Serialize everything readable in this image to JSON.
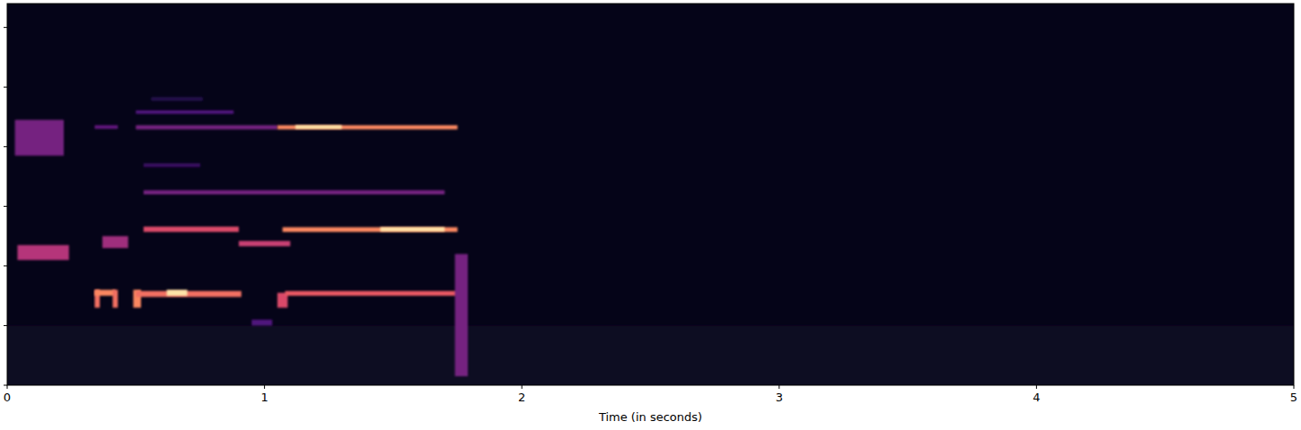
{
  "chart_data": {
    "type": "heatmap",
    "xlabel": "Time (in seconds)",
    "xlim": [
      0,
      5
    ],
    "xticks": [
      0,
      1,
      2,
      3,
      4,
      5
    ],
    "ylim": [
      0,
      6.4
    ],
    "yticks": [
      0,
      1,
      2,
      3,
      4,
      5,
      6
    ],
    "tick_labels": "x",
    "clim": [
      0,
      1
    ],
    "cells": [
      {
        "t0": 0,
        "t1": 5,
        "f0": 0,
        "f1": 1.0,
        "v": 0.06
      },
      {
        "t0": 0.03,
        "t1": 0.22,
        "f0": 3.85,
        "f1": 4.45,
        "v": 0.35
      },
      {
        "t0": 0.04,
        "t1": 0.24,
        "f0": 2.1,
        "f1": 2.35,
        "v": 0.5
      },
      {
        "t0": 0.34,
        "t1": 0.36,
        "f0": 1.3,
        "f1": 1.6,
        "v": 0.7
      },
      {
        "t0": 0.34,
        "t1": 0.42,
        "f0": 1.5,
        "f1": 1.6,
        "v": 0.75
      },
      {
        "t0": 0.41,
        "t1": 0.43,
        "f0": 1.3,
        "f1": 1.6,
        "v": 0.7
      },
      {
        "t0": 0.49,
        "t1": 0.52,
        "f0": 1.3,
        "f1": 1.6,
        "v": 0.75
      },
      {
        "t0": 0.5,
        "t1": 0.91,
        "f0": 1.48,
        "f1": 1.58,
        "v": 0.7
      },
      {
        "t0": 0.62,
        "t1": 0.7,
        "f0": 1.5,
        "f1": 1.6,
        "v": 0.95
      },
      {
        "t0": 1.05,
        "t1": 1.09,
        "f0": 1.3,
        "f1": 1.55,
        "v": 0.6
      },
      {
        "t0": 1.08,
        "t1": 1.75,
        "f0": 1.5,
        "f1": 1.58,
        "v": 0.65
      },
      {
        "t0": 0.95,
        "t1": 1.03,
        "f0": 1.0,
        "f1": 1.1,
        "v": 0.25
      },
      {
        "t0": 0.53,
        "t1": 0.9,
        "f0": 2.57,
        "f1": 2.66,
        "v": 0.6
      },
      {
        "t0": 1.07,
        "t1": 1.75,
        "f0": 2.57,
        "f1": 2.65,
        "v": 0.75
      },
      {
        "t0": 1.45,
        "t1": 1.7,
        "f0": 2.58,
        "f1": 2.65,
        "v": 0.95
      },
      {
        "t0": 0.9,
        "t1": 1.1,
        "f0": 2.33,
        "f1": 2.42,
        "v": 0.55
      },
      {
        "t0": 0.37,
        "t1": 0.47,
        "f0": 2.3,
        "f1": 2.5,
        "v": 0.45
      },
      {
        "t0": 0.53,
        "t1": 1.7,
        "f0": 3.2,
        "f1": 3.27,
        "v": 0.35
      },
      {
        "t0": 0.53,
        "t1": 0.75,
        "f0": 3.66,
        "f1": 3.72,
        "v": 0.2
      },
      {
        "t0": 0.34,
        "t1": 0.43,
        "f0": 4.3,
        "f1": 4.36,
        "v": 0.3
      },
      {
        "t0": 0.5,
        "t1": 1.05,
        "f0": 4.29,
        "f1": 4.36,
        "v": 0.35
      },
      {
        "t0": 1.05,
        "t1": 1.75,
        "f0": 4.29,
        "f1": 4.36,
        "v": 0.75
      },
      {
        "t0": 1.12,
        "t1": 1.3,
        "f0": 4.3,
        "f1": 4.36,
        "v": 0.95
      },
      {
        "t0": 0.5,
        "t1": 0.88,
        "f0": 4.55,
        "f1": 4.61,
        "v": 0.25
      },
      {
        "t0": 0.56,
        "t1": 0.76,
        "f0": 4.77,
        "f1": 4.83,
        "v": 0.15
      },
      {
        "t0": 1.74,
        "t1": 1.79,
        "f0": 0.15,
        "f1": 2.2,
        "v": 0.35
      }
    ]
  }
}
